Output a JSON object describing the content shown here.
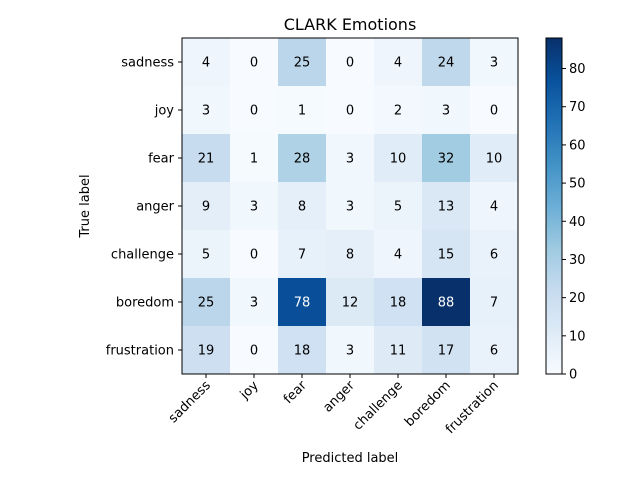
{
  "chart_data": {
    "type": "heatmap",
    "title": "CLARK Emotions",
    "xlabel": "Predicted label",
    "ylabel": "True label",
    "x_categories": [
      "sadness",
      "joy",
      "fear",
      "anger",
      "challenge",
      "boredom",
      "frustration"
    ],
    "y_categories": [
      "sadness",
      "joy",
      "fear",
      "anger",
      "challenge",
      "boredom",
      "frustration"
    ],
    "matrix": [
      [
        4,
        0,
        25,
        0,
        4,
        24,
        3
      ],
      [
        3,
        0,
        1,
        0,
        2,
        3,
        0
      ],
      [
        21,
        1,
        28,
        3,
        10,
        32,
        10
      ],
      [
        9,
        3,
        8,
        3,
        5,
        13,
        4
      ],
      [
        5,
        0,
        7,
        8,
        4,
        15,
        6
      ],
      [
        25,
        3,
        78,
        12,
        18,
        88,
        7
      ],
      [
        19,
        0,
        18,
        3,
        11,
        17,
        6
      ]
    ],
    "colormap": "Blues",
    "colorbar": {
      "range": [
        0,
        88
      ],
      "ticks": [
        0,
        10,
        20,
        30,
        40,
        50,
        60,
        70,
        80
      ]
    },
    "grid": false
  }
}
